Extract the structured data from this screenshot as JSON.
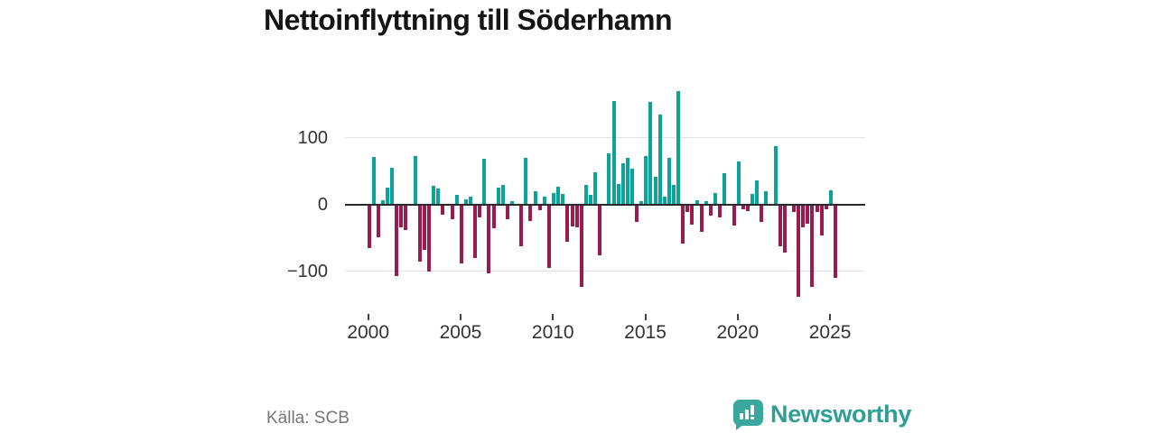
{
  "title": "Nettoinflyttning till Söderhamn",
  "footer": {
    "source": "Källa: SCB",
    "brand": "Newsworthy"
  },
  "colors": {
    "positive": "#0aa49d",
    "negative": "#9b1b4e",
    "title_text": "#151515",
    "axis_text": "#333333",
    "muted_text": "#757575",
    "gridline": "#e3e3e3",
    "zero_line": "#2a2a2a",
    "brand_teal": "#2f9e95"
  },
  "y_axis": {
    "tick_labels": [
      "100",
      "0",
      "−100"
    ],
    "tick_values": [
      100,
      0,
      -100
    ]
  },
  "x_axis": {
    "tick_labels": [
      "2000",
      "2005",
      "2010",
      "2015",
      "2020",
      "2025"
    ],
    "tick_years": [
      2000,
      2005,
      2010,
      2015,
      2020,
      2025
    ]
  },
  "chart_data": {
    "type": "bar",
    "title": "Nettoinflyttning till Söderhamn",
    "xlabel": "",
    "ylabel": "",
    "frequency": "quarterly",
    "start_period": "2000-Q1",
    "end_period": "2025-Q2",
    "gridlines": [
      100,
      0,
      -100
    ],
    "ylim": [
      -160,
      210
    ],
    "legend": "none",
    "positive_color": "#0aa49d",
    "negative_color": "#9b1b4e",
    "values": [
      -65,
      71,
      -49,
      6,
      25,
      55,
      -108,
      -34,
      -38,
      0,
      72,
      -86,
      -68,
      -101,
      28,
      23,
      -15,
      0,
      -22,
      14,
      -89,
      8,
      12,
      -81,
      -20,
      68,
      -104,
      -36,
      25,
      29,
      -22,
      5,
      0,
      -63,
      69,
      -25,
      20,
      -9,
      12,
      -95,
      17,
      26,
      16,
      -56,
      -33,
      -35,
      -124,
      29,
      14,
      48,
      -76,
      0,
      77,
      155,
      31,
      61,
      70,
      54,
      -27,
      5,
      72,
      154,
      41,
      135,
      11,
      69,
      29,
      169,
      -59,
      -11,
      -31,
      6,
      -41,
      5,
      -17,
      17,
      -20,
      47,
      0,
      -32,
      64,
      -8,
      -10,
      15,
      36,
      -27,
      19,
      0,
      87,
      -63,
      -72,
      0,
      -11,
      -139,
      -34,
      -29,
      -124,
      -11,
      -47,
      -8,
      21,
      -110
    ]
  }
}
